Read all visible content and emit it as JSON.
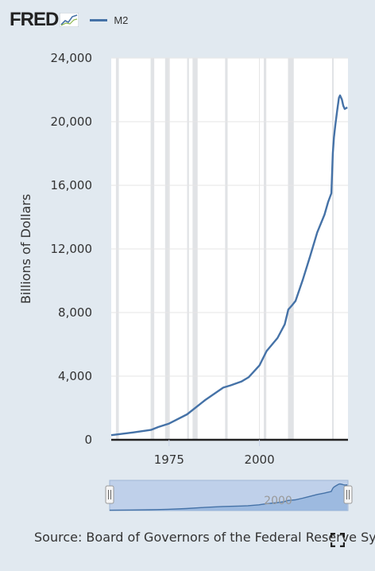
{
  "header": {
    "logo_text": "FRED",
    "logo_icon": "fred-chart-logo-icon",
    "legend_label": "M2",
    "series_color": "#4572a7"
  },
  "chart_data": {
    "type": "line",
    "ylabel": "Billions of Dollars",
    "xlabel": "",
    "ylim": [
      0,
      24000
    ],
    "yticks": [
      0,
      4000,
      8000,
      12000,
      16000,
      20000,
      24000
    ],
    "ytick_labels": [
      "0",
      "4,000",
      "8,000",
      "12,000",
      "16,000",
      "20,000",
      "24,000"
    ],
    "xlim": [
      1959,
      2024.5
    ],
    "xticks": [
      1975,
      2000
    ],
    "xtick_labels": [
      "1975",
      "2000"
    ],
    "grid": true,
    "recession_shading": [
      [
        1960.3,
        1961.1
      ],
      [
        1969.9,
        1970.9
      ],
      [
        1973.9,
        1975.2
      ],
      [
        1980.0,
        1980.5
      ],
      [
        1981.5,
        1982.9
      ],
      [
        1990.5,
        1991.2
      ],
      [
        2001.2,
        2001.9
      ],
      [
        2007.9,
        2009.5
      ],
      [
        2020.1,
        2020.3
      ]
    ],
    "series": [
      {
        "name": "M2",
        "x": [
          1959,
          1965,
          1970,
          1972,
          1975,
          1980,
          1985,
          1990,
          1992,
          1995,
          1997,
          2000,
          2002,
          2005,
          2007,
          2008,
          2009,
          2010,
          2012,
          2014,
          2016,
          2018,
          2019,
          2019.9,
          2020.3,
          2020.6,
          2021,
          2021.5,
          2022,
          2022.3,
          2022.8,
          2023.2,
          2023.6,
          2024,
          2024.3
        ],
        "y": [
          290,
          460,
          620,
          800,
          1020,
          1600,
          2500,
          3280,
          3420,
          3660,
          3930,
          4670,
          5580,
          6400,
          7260,
          8190,
          8450,
          8730,
          10060,
          11520,
          13040,
          14150,
          14950,
          15500,
          18000,
          19000,
          19800,
          20700,
          21500,
          21650,
          21400,
          21000,
          20800,
          20850,
          20900
        ]
      }
    ],
    "navigator": {
      "visible_label": "2000",
      "range": [
        1959,
        2024.5
      ]
    }
  },
  "footer": {
    "source_text": "Source: Board of Governors of the Federal Reserve System (US)",
    "expand_icon": "fullscreen-expand-icon"
  }
}
